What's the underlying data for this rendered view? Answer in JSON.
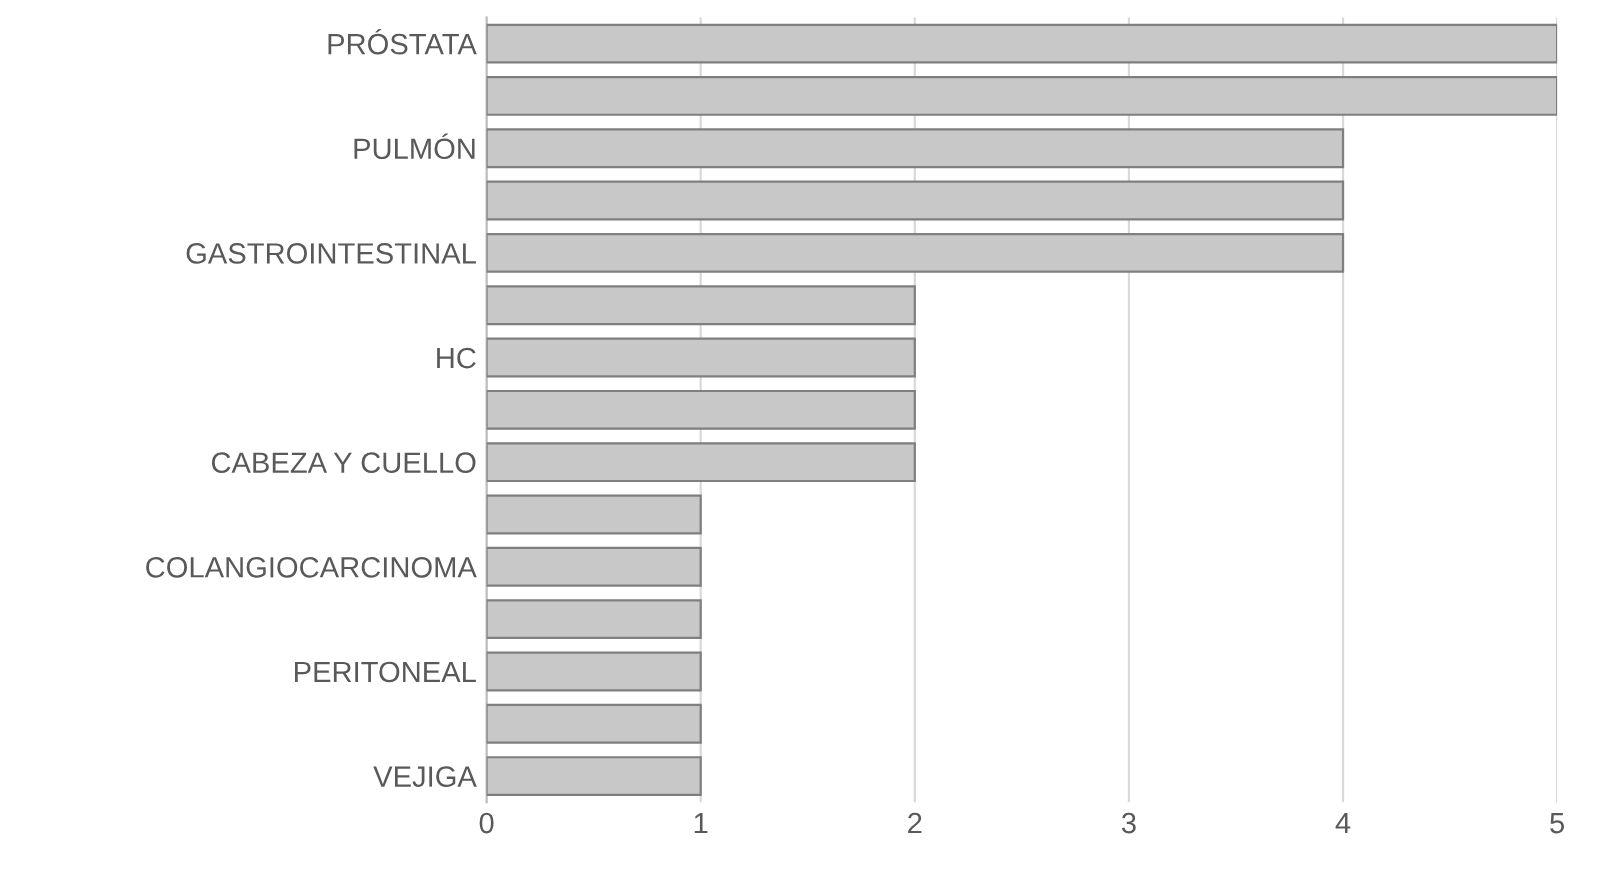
{
  "chart_data": {
    "type": "bar",
    "orientation": "horizontal",
    "categories": [
      "PRÓSTATA",
      null,
      "PULMÓN",
      null,
      "GASTROINTESTINAL",
      null,
      "HC",
      null,
      "CABEZA Y CUELLO",
      null,
      "COLANGIOCARCINOMA",
      null,
      "PERITONEAL",
      null,
      "VEJIGA"
    ],
    "values": [
      5,
      5,
      4,
      4,
      4,
      2,
      2,
      2,
      2,
      1,
      1,
      1,
      1,
      1,
      1
    ],
    "color": "#c8c8c8",
    "xlim": [
      0,
      5
    ],
    "xticks": [
      0,
      1,
      2,
      3,
      4,
      5
    ],
    "grid": "x"
  }
}
